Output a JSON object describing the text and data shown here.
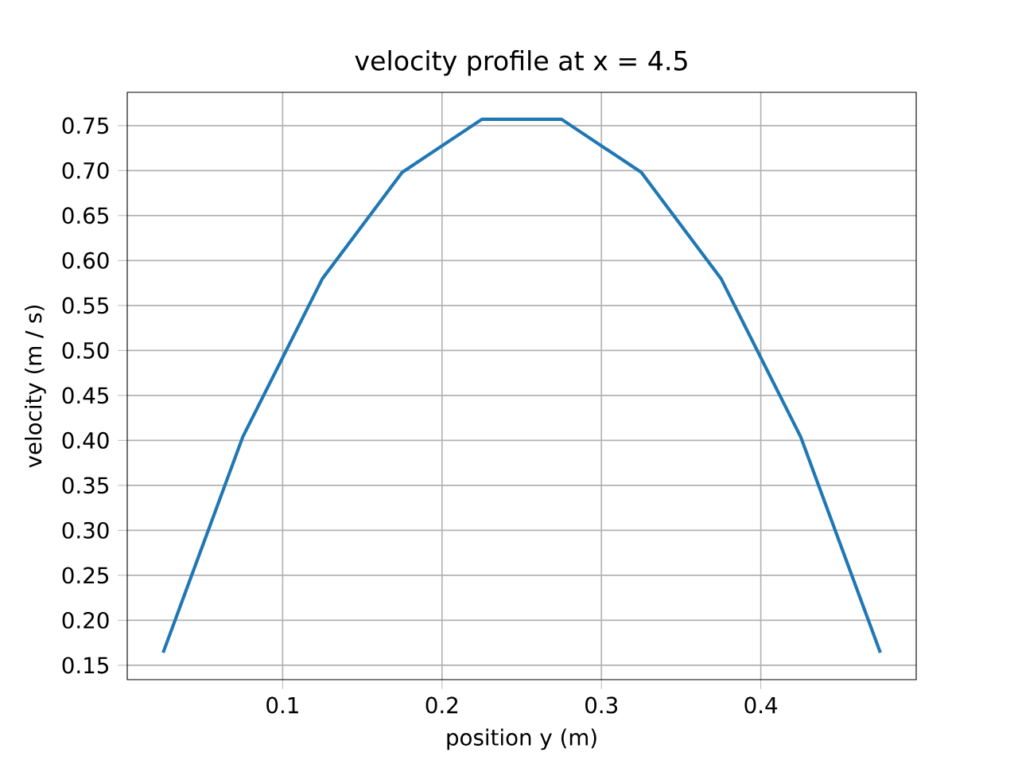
{
  "chart_data": {
    "type": "line",
    "title": "velocity profile at x = 4.5",
    "xlabel": "position y (m)",
    "ylabel": "velocity (m / s)",
    "x": [
      0.025,
      0.075,
      0.125,
      0.175,
      0.225,
      0.275,
      0.325,
      0.375,
      0.425,
      0.475
    ],
    "series": [
      {
        "color": "#1f77b4",
        "values": [
          0.164,
          0.404,
          0.58,
          0.698,
          0.757,
          0.757,
          0.698,
          0.58,
          0.404,
          0.164
        ]
      }
    ],
    "xlim": [
      0.0025,
      0.4975
    ],
    "ylim": [
      0.134,
      0.787
    ],
    "xticks": [
      0.1,
      0.2,
      0.3,
      0.4
    ],
    "yticks": [
      {
        "value": 0.15,
        "label": "0.15"
      },
      {
        "value": 0.2,
        "label": "0.20"
      },
      {
        "value": 0.25,
        "label": "0.25"
      },
      {
        "value": 0.3,
        "label": "0.30"
      },
      {
        "value": 0.35,
        "label": "0.35"
      },
      {
        "value": 0.4,
        "label": "0.40"
      },
      {
        "value": 0.45,
        "label": "0.45"
      },
      {
        "value": 0.5,
        "label": "0.50"
      },
      {
        "value": 0.55,
        "label": "0.55"
      },
      {
        "value": 0.6,
        "label": "0.60"
      },
      {
        "value": 0.65,
        "label": "0.65"
      },
      {
        "value": 0.7,
        "label": "0.70"
      },
      {
        "value": 0.75,
        "label": "0.75"
      }
    ],
    "grid": true,
    "marker": "none",
    "line_style": "solid"
  }
}
